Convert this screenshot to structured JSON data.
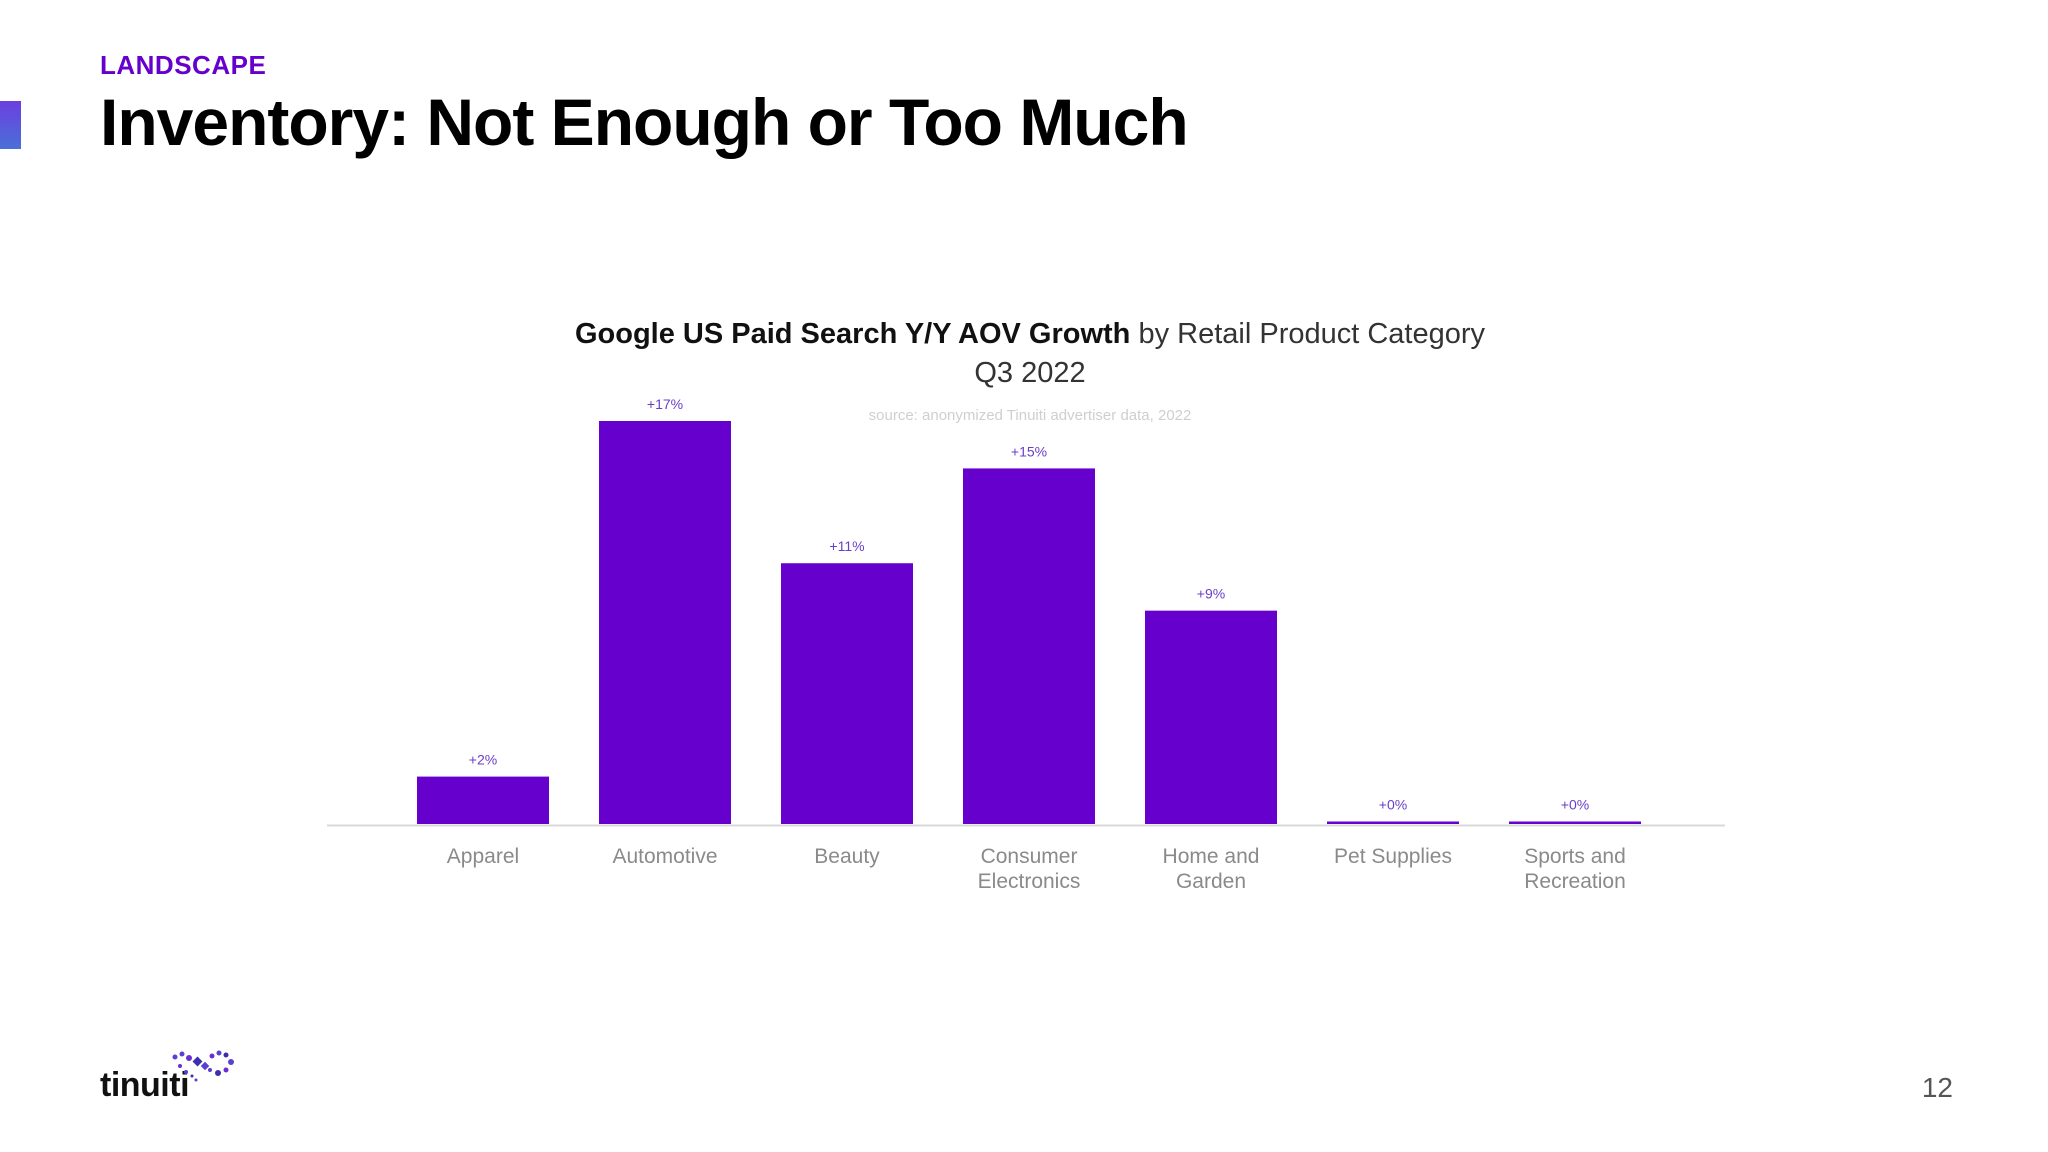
{
  "header": {
    "section_label": "LANDSCAPE",
    "title": "Inventory: Not Enough or Too Much"
  },
  "chart_title": {
    "bold": "Google US Paid Search Y/Y AOV Growth",
    "regular": " by Retail Product Category",
    "subtitle": "Q3 2022",
    "source": "source: anonymized Tinuiti advertiser data, 2022"
  },
  "chart_data": {
    "type": "bar",
    "title": "Google US Paid Search Y/Y AOV Growth by Retail Product Category",
    "subtitle": "Q3 2022",
    "categories": [
      "Apparel",
      "Automotive",
      "Beauty",
      "Consumer Electronics",
      "Home and Garden",
      "Pet Supplies",
      "Sports and Recreation"
    ],
    "category_lines": [
      [
        "Apparel"
      ],
      [
        "Automotive"
      ],
      [
        "Beauty"
      ],
      [
        "Consumer",
        "Electronics"
      ],
      [
        "Home and",
        "Garden"
      ],
      [
        "Pet Supplies"
      ],
      [
        "Sports and",
        "Recreation"
      ]
    ],
    "values": [
      2,
      17,
      11,
      15,
      9,
      0,
      0
    ],
    "data_labels": [
      "+2%",
      "+17%",
      "+11%",
      "+15%",
      "+9%",
      "+0%",
      "+0%"
    ],
    "xlabel": "",
    "ylabel": "",
    "ylim": [
      0,
      17
    ],
    "grid": false,
    "bar_color": "#6600cc"
  },
  "footer": {
    "logo_text": "tinuiti",
    "page_number": "12"
  },
  "colors": {
    "accent": "#6600cc",
    "logo_dots": "#5b3fd0"
  }
}
